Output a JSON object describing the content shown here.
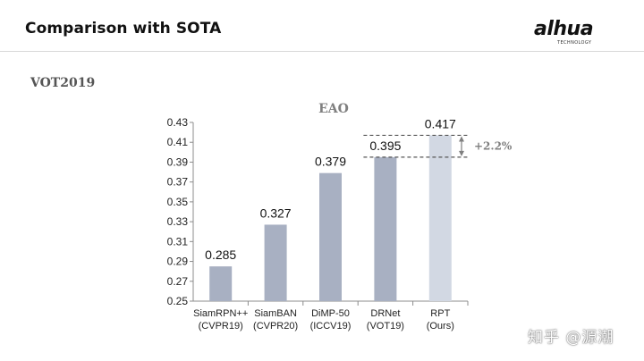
{
  "slide": {
    "title": "Comparison with SOTA",
    "section": "VOT2019",
    "logo": {
      "main": "alhua",
      "sub": "TECHNOLOGY"
    },
    "watermark": "知乎 @源潮"
  },
  "chart_data": {
    "type": "bar",
    "title": "EAO",
    "xlabel": "",
    "ylabel": "",
    "categories": [
      [
        "SiamRPN++",
        "(CVPR19)"
      ],
      [
        "SiamBAN",
        "(CVPR20)"
      ],
      [
        "DiMP-50",
        "(ICCV19)"
      ],
      [
        "DRNet",
        "(VOT19)"
      ],
      [
        "RPT",
        "(Ours)"
      ]
    ],
    "values": [
      0.285,
      0.327,
      0.379,
      0.395,
      0.417
    ],
    "value_labels": [
      "0.285",
      "0.327",
      "0.379",
      "0.395",
      "0.417"
    ],
    "ylim": [
      0.25,
      0.43
    ],
    "yticks": [
      "0.25",
      "0.27",
      "0.29",
      "0.31",
      "0.33",
      "0.35",
      "0.37",
      "0.39",
      "0.41",
      "0.43"
    ],
    "bar_colors": [
      "#a8b0c2",
      "#a8b0c2",
      "#a8b0c2",
      "#a8b0c2",
      "#d2d8e3"
    ],
    "grid": false,
    "annotation": {
      "text": "+2.2%",
      "from": 0.395,
      "to": 0.417,
      "color": "#7f7f7f"
    }
  }
}
